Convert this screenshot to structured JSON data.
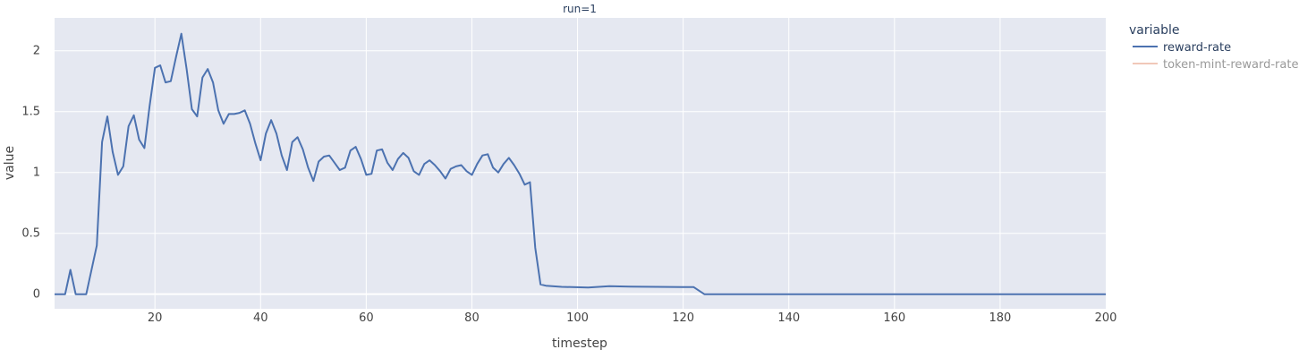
{
  "chart_data": {
    "type": "line",
    "title": "run=1",
    "xlabel": "timestep",
    "ylabel": "value",
    "xlim": [
      1,
      200
    ],
    "ylim": [
      -0.12,
      2.27
    ],
    "grid": true,
    "x_ticks": [
      20,
      40,
      60,
      80,
      100,
      120,
      140,
      160,
      180,
      200
    ],
    "y_ticks": [
      0,
      0.5,
      1,
      1.5,
      2
    ],
    "y_tick_labels": [
      "0",
      "0.5",
      "1",
      "1.5",
      "2"
    ],
    "legend": {
      "title": "variable",
      "placement": "right",
      "entries": [
        "reward-rate",
        "token-mint-reward-rate"
      ]
    },
    "series": [
      {
        "name": "reward-rate",
        "color": "#4c72b0",
        "points": [
          [
            1,
            0
          ],
          [
            3,
            0
          ],
          [
            4,
            0.2
          ],
          [
            5,
            0
          ],
          [
            7,
            0
          ],
          [
            9,
            0.4
          ],
          [
            10,
            1.25
          ],
          [
            11,
            1.46
          ],
          [
            12,
            1.17
          ],
          [
            13,
            0.98
          ],
          [
            14,
            1.05
          ],
          [
            15,
            1.38
          ],
          [
            16,
            1.47
          ],
          [
            17,
            1.27
          ],
          [
            18,
            1.2
          ],
          [
            19,
            1.55
          ],
          [
            20,
            1.86
          ],
          [
            21,
            1.88
          ],
          [
            22,
            1.74
          ],
          [
            23,
            1.75
          ],
          [
            24,
            1.95
          ],
          [
            25,
            2.14
          ],
          [
            26,
            1.85
          ],
          [
            27,
            1.52
          ],
          [
            28,
            1.46
          ],
          [
            29,
            1.78
          ],
          [
            30,
            1.85
          ],
          [
            31,
            1.74
          ],
          [
            32,
            1.51
          ],
          [
            33,
            1.4
          ],
          [
            34,
            1.48
          ],
          [
            35,
            1.48
          ],
          [
            36,
            1.49
          ],
          [
            37,
            1.51
          ],
          [
            38,
            1.4
          ],
          [
            39,
            1.24
          ],
          [
            40,
            1.1
          ],
          [
            41,
            1.32
          ],
          [
            42,
            1.43
          ],
          [
            43,
            1.32
          ],
          [
            44,
            1.14
          ],
          [
            45,
            1.02
          ],
          [
            46,
            1.25
          ],
          [
            47,
            1.29
          ],
          [
            48,
            1.19
          ],
          [
            49,
            1.04
          ],
          [
            50,
            0.93
          ],
          [
            51,
            1.09
          ],
          [
            52,
            1.13
          ],
          [
            53,
            1.14
          ],
          [
            54,
            1.08
          ],
          [
            55,
            1.02
          ],
          [
            56,
            1.04
          ],
          [
            57,
            1.18
          ],
          [
            58,
            1.21
          ],
          [
            59,
            1.11
          ],
          [
            60,
            0.98
          ],
          [
            61,
            0.99
          ],
          [
            62,
            1.18
          ],
          [
            63,
            1.19
          ],
          [
            64,
            1.08
          ],
          [
            65,
            1.02
          ],
          [
            66,
            1.11
          ],
          [
            67,
            1.16
          ],
          [
            68,
            1.12
          ],
          [
            69,
            1.01
          ],
          [
            70,
            0.98
          ],
          [
            71,
            1.07
          ],
          [
            72,
            1.1
          ],
          [
            73,
            1.06
          ],
          [
            74,
            1.01
          ],
          [
            75,
            0.95
          ],
          [
            76,
            1.03
          ],
          [
            77,
            1.05
          ],
          [
            78,
            1.06
          ],
          [
            79,
            1.01
          ],
          [
            80,
            0.98
          ],
          [
            81,
            1.07
          ],
          [
            82,
            1.14
          ],
          [
            83,
            1.15
          ],
          [
            84,
            1.04
          ],
          [
            85,
            1.0
          ],
          [
            86,
            1.07
          ],
          [
            87,
            1.12
          ],
          [
            88,
            1.06
          ],
          [
            89,
            0.99
          ],
          [
            90,
            0.9
          ],
          [
            91,
            0.92
          ],
          [
            92,
            0.38
          ],
          [
            93,
            0.08
          ],
          [
            94,
            0.07
          ],
          [
            97,
            0.06
          ],
          [
            102,
            0.055
          ],
          [
            106,
            0.065
          ],
          [
            110,
            0.062
          ],
          [
            122,
            0.058
          ],
          [
            124,
            0
          ],
          [
            200,
            0
          ]
        ]
      },
      {
        "name": "token-mint-reward-rate",
        "color": "#e8a48c",
        "hidden": true,
        "points": []
      }
    ]
  }
}
